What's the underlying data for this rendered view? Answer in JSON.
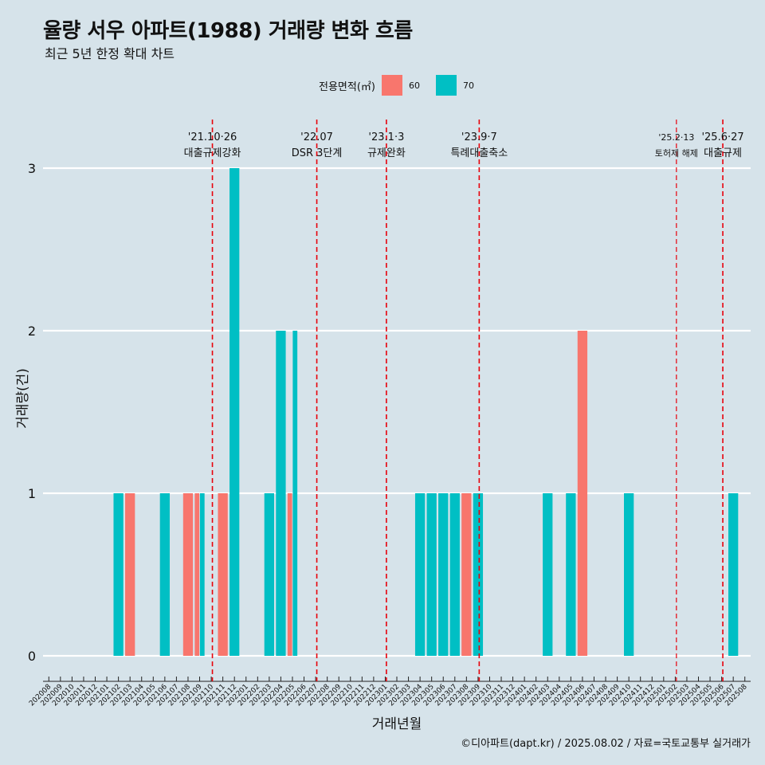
{
  "title": "율량 서우 아파트(1988) 거래량 변화 흐름",
  "subtitle": "최근 5년 한정 확대 차트",
  "legend": {
    "title": "전용면적(㎡)",
    "items": [
      {
        "label": "60",
        "color": "#f8766d"
      },
      {
        "label": "70",
        "color": "#00bfc4"
      }
    ]
  },
  "caption": "©디아파트(dapt.kr) / 2025.08.02 / 자료=국토교통부 실거래가",
  "chart_data": {
    "type": "bar",
    "xlabel": "거래년월",
    "ylabel": "거래량(건)",
    "ylim": [
      0,
      3
    ],
    "yticks": [
      0,
      1,
      2,
      3
    ],
    "grid": true,
    "legend_position": "top",
    "categories": [
      "202008",
      "202009",
      "202010",
      "202011",
      "202012",
      "202101",
      "202102",
      "202103",
      "202104",
      "202105",
      "202106",
      "202107",
      "202108",
      "202109",
      "202110",
      "202111",
      "202112",
      "202201",
      "202202",
      "202203",
      "202204",
      "202205",
      "202206",
      "202207",
      "202208",
      "202209",
      "202210",
      "202211",
      "202212",
      "202301",
      "202302",
      "202303",
      "202304",
      "202305",
      "202306",
      "202307",
      "202308",
      "202309",
      "202310",
      "202311",
      "202312",
      "202401",
      "202402",
      "202403",
      "202404",
      "202405",
      "202406",
      "202407",
      "202408",
      "202409",
      "202410",
      "202411",
      "202412",
      "202501",
      "202502",
      "202503",
      "202504",
      "202505",
      "202506",
      "202507",
      "202508"
    ],
    "bars": [
      {
        "x": "202102",
        "series": "70",
        "value": 1
      },
      {
        "x": "202103",
        "series": "60",
        "value": 1
      },
      {
        "x": "202106",
        "series": "70",
        "value": 1
      },
      {
        "x": "202108",
        "series": "60",
        "value": 1
      },
      {
        "x": "202109",
        "series": "60",
        "value": 1
      },
      {
        "x": "202109",
        "series": "70",
        "value": 1
      },
      {
        "x": "202111",
        "series": "60",
        "value": 1
      },
      {
        "x": "202112",
        "series": "70",
        "value": 3
      },
      {
        "x": "202203",
        "series": "70",
        "value": 1
      },
      {
        "x": "202204",
        "series": "70",
        "value": 2
      },
      {
        "x": "202205",
        "series": "60",
        "value": 1
      },
      {
        "x": "202205",
        "series": "70",
        "value": 2
      },
      {
        "x": "202304",
        "series": "70",
        "value": 1
      },
      {
        "x": "202305",
        "series": "70",
        "value": 1
      },
      {
        "x": "202306",
        "series": "70",
        "value": 1
      },
      {
        "x": "202307",
        "series": "70",
        "value": 1
      },
      {
        "x": "202308",
        "series": "60",
        "value": 1
      },
      {
        "x": "202309",
        "series": "70",
        "value": 1
      },
      {
        "x": "202403",
        "series": "70",
        "value": 1
      },
      {
        "x": "202405",
        "series": "70",
        "value": 1
      },
      {
        "x": "202406",
        "series": "60",
        "value": 2
      },
      {
        "x": "202410",
        "series": "70",
        "value": 1
      },
      {
        "x": "202507",
        "series": "70",
        "value": 1
      }
    ],
    "annotations": [
      {
        "x": 14.6,
        "date": "'21.10·26",
        "text": "대출규제강화"
      },
      {
        "x": 23.6,
        "date": "'22.07",
        "text": "DSR 3단계"
      },
      {
        "x": 29.6,
        "date": "'23.1·3",
        "text": "규제완화"
      },
      {
        "x": 37.6,
        "date": "'23.9·7",
        "text": "특례대출축소"
      },
      {
        "x": 54.6,
        "date": "'25.2·13",
        "text": "토허제 해제",
        "small": true
      },
      {
        "x": 58.6,
        "date": "'25.6·27",
        "text": "대출규제"
      }
    ],
    "colors": {
      "60": "#f8766d",
      "70": "#00bfc4"
    }
  }
}
